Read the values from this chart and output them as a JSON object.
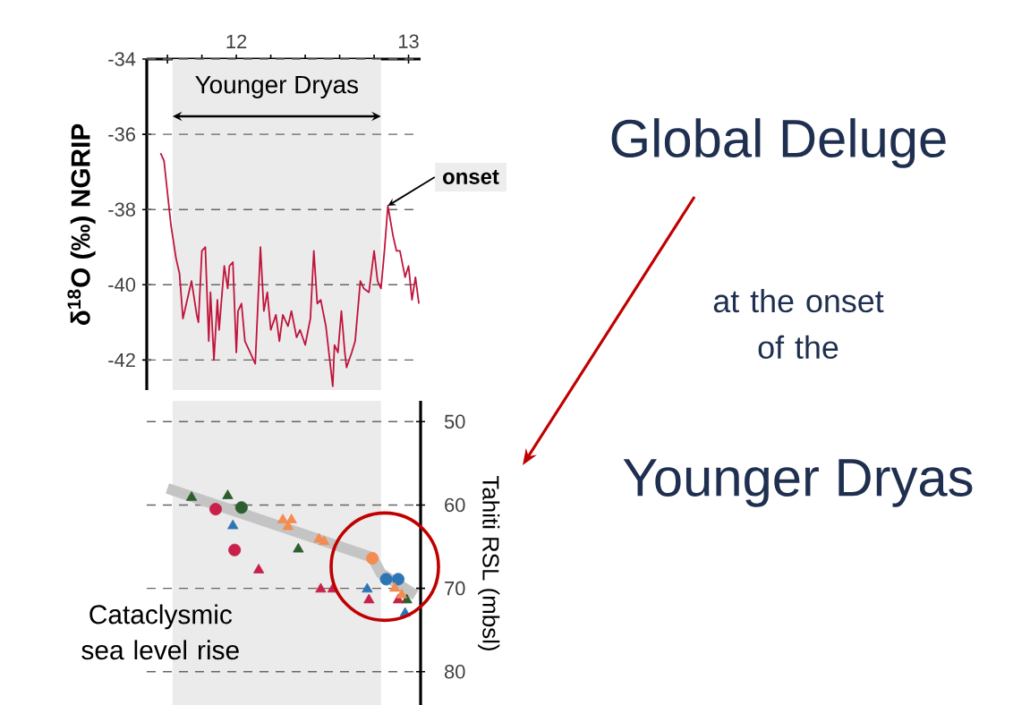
{
  "chart_data": [
    {
      "type": "line",
      "ylabel": "**δ$^{18}$O (‰) NGRIP**",
      "color": "#c0143c",
      "x": [
        11.56,
        11.58,
        11.62,
        11.65,
        11.67,
        11.69,
        11.71,
        11.74,
        11.77,
        11.78,
        11.8,
        11.82,
        11.84,
        11.85,
        11.87,
        11.89,
        11.9,
        11.93,
        11.95,
        11.96,
        11.98,
        12.0,
        12.01,
        12.03,
        12.05,
        12.08,
        12.11,
        12.14,
        12.16,
        12.18,
        12.2,
        12.23,
        12.25,
        12.27,
        12.3,
        12.32,
        12.35,
        12.37,
        12.4,
        12.43,
        12.45,
        12.47,
        12.49,
        12.52,
        12.54,
        12.56,
        12.57,
        12.59,
        12.61,
        12.63,
        12.64,
        12.67,
        12.69,
        12.72,
        12.74,
        12.77,
        12.8,
        12.82,
        12.84,
        12.86,
        12.88,
        12.91,
        12.93,
        12.95,
        12.98,
        13.0,
        13.02,
        13.04,
        13.06
      ],
      "values": [
        -36.5,
        -36.7,
        -38.4,
        -39.3,
        -39.7,
        -40.9,
        -40.5,
        -39.9,
        -40.8,
        -41.0,
        -39.1,
        -39.0,
        -41.5,
        -40.2,
        -42.0,
        -40.4,
        -41.2,
        -39.5,
        -40.1,
        -39.5,
        -39.4,
        -41.8,
        -40.7,
        -40.5,
        -41.5,
        -41.8,
        -42.1,
        -39.0,
        -40.7,
        -40.2,
        -41.2,
        -40.8,
        -41.5,
        -40.8,
        -41.1,
        -40.7,
        -41.4,
        -41.2,
        -41.6,
        -40.9,
        -39.1,
        -40.5,
        -40.4,
        -41.1,
        -41.9,
        -42.7,
        -41.6,
        -41.8,
        -40.7,
        -41.8,
        -42.2,
        -41.8,
        -41.5,
        -39.9,
        -40.1,
        -40.2,
        -39.1,
        -39.9,
        -40.1,
        -39.1,
        -37.9,
        -38.7,
        -39.1,
        -39.1,
        -39.8,
        -39.5,
        -40.4,
        -39.8,
        -40.5
      ],
      "xlim": [
        11.48,
        13.07
      ],
      "ylim": [
        -42.8,
        -34
      ],
      "xticks": [
        {
          "value": 11.6,
          "label": null
        },
        {
          "value": 11.8,
          "label": null
        },
        12,
        {
          "value": 12.2,
          "label": null
        },
        {
          "value": 12.4,
          "label": null
        },
        {
          "value": 12.6,
          "label": null
        },
        {
          "value": 12.8,
          "label": null
        },
        13
      ],
      "yticks": [
        -34,
        -36,
        -38,
        -40,
        -42
      ],
      "grid": "y",
      "bands": [
        {
          "axis": "x",
          "from": 11.63,
          "to": 12.84,
          "label": "Younger Dryas",
          "color": "#ebebeb"
        }
      ],
      "annotations": [
        {
          "text": "**onset**",
          "x": 12.88,
          "y": -37.9
        }
      ]
    },
    {
      "type": "scatter",
      "ylabel": "Tahiti RSL (mbsl)",
      "xlim": [
        11.48,
        13.07
      ],
      "ylim": [
        84,
        47.5
      ],
      "yticks": [
        50,
        60,
        70,
        80
      ],
      "grid": "y",
      "tick_labels": "y",
      "bands": [
        {
          "axis": "x",
          "from": 11.63,
          "to": 12.84,
          "color": "#ebebeb"
        }
      ],
      "annotations": [
        "Cataclysmic sea level rise"
      ],
      "series": [
        {
          "type": "line",
          "color": "#c4c4c4",
          "x": [
            11.6,
            12.79,
            12.84,
            13.04
          ],
          "values": [
            58.0,
            66.3,
            68.2,
            70.8
          ]
        },
        {
          "color": "#2e5e2e",
          "marker": "triangle",
          "x": [
            11.74,
            11.95,
            12.36,
            12.99
          ],
          "values": [
            59.1,
            58.9,
            65.3,
            71.4
          ]
        },
        {
          "color": "#2e5e2e",
          "marker": "circle",
          "x": [
            12.03
          ],
          "values": [
            60.3
          ]
        },
        {
          "color": "#c8204a",
          "marker": "circle",
          "x": [
            11.88,
            11.99
          ],
          "values": [
            60.5,
            65.4
          ]
        },
        {
          "color": "#c8204a",
          "marker": "triangle",
          "x": [
            12.13,
            12.49,
            12.56,
            12.77,
            12.94
          ],
          "values": [
            67.8,
            70.1,
            70.1,
            71.4,
            71.4
          ]
        },
        {
          "color": "#2e75b6",
          "marker": "triangle",
          "x": [
            11.98,
            12.76,
            12.98
          ],
          "values": [
            62.5,
            70.1,
            73.0
          ]
        },
        {
          "color": "#2e75b6",
          "marker": "circle",
          "x": [
            12.87,
            12.94
          ],
          "values": [
            68.9,
            68.9
          ]
        },
        {
          "color": "#f28c50",
          "marker": "triangle",
          "x": [
            12.27,
            12.32,
            12.3,
            12.48,
            12.51,
            12.92,
            12.96
          ],
          "values": [
            61.8,
            61.8,
            62.6,
            64.1,
            64.4,
            70.0,
            70.8
          ]
        },
        {
          "color": "#f28c50",
          "marker": "circle",
          "x": [
            12.79
          ],
          "values": [
            66.4
          ]
        }
      ]
    },
    {
      "type": "other",
      "title": "Global Deluge",
      "subtitle": "at the onset of the",
      "annotations": [
        "Younger Dryas"
      ]
    }
  ]
}
